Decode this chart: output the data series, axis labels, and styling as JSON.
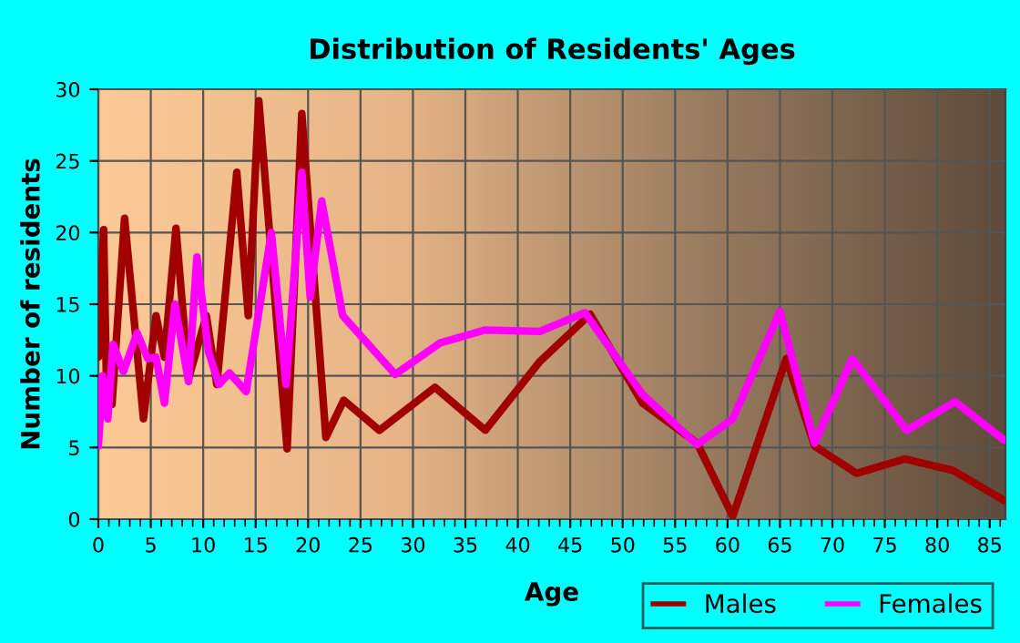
{
  "chart_data": {
    "type": "line",
    "title": "Distribution of Residents' Ages",
    "xlabel": "Age",
    "ylabel": "Number of residents",
    "series": [
      {
        "name": "Males",
        "color": "#a00000",
        "x": [
          0,
          0.5,
          0.8,
          1.3,
          2.5,
          4.3,
          5.5,
          6.3,
          7.4,
          8.6,
          10.3,
          11.3,
          13.2,
          14.3,
          15.3,
          18,
          19.4,
          21.7,
          23.4,
          26.8,
          32.1,
          36.9,
          42.1,
          46.9,
          51.9,
          57.1,
          60.5,
          65.6,
          68.3,
          72.3,
          76.9,
          81.5,
          86.4
        ],
        "values": [
          11.3,
          20.2,
          8.5,
          8,
          21,
          7,
          14.2,
          11.3,
          20.3,
          9.8,
          14.2,
          9.4,
          24.2,
          14.2,
          29.2,
          4.9,
          28.3,
          5.7,
          8.3,
          6.2,
          9.2,
          6.2,
          11,
          14.3,
          8.1,
          5.3,
          0.2,
          11.2,
          5.1,
          3.2,
          4.2,
          3.4,
          1.3
        ]
      },
      {
        "name": "Females",
        "color": "#ff00ff",
        "x": [
          0,
          0.4,
          0.9,
          1.4,
          2.4,
          3.7,
          4.7,
          5.5,
          6.3,
          7.3,
          8.6,
          9.4,
          10.5,
          11.5,
          12.5,
          14.1,
          16.5,
          17.9,
          19.4,
          20.2,
          21.3,
          23.3,
          28.3,
          32.6,
          36.9,
          42.1,
          46.4,
          51.9,
          57.1,
          60.5,
          65,
          68.3,
          71.9,
          77.1,
          81.7,
          86.4
        ],
        "values": [
          5.1,
          10,
          7,
          12.2,
          10.3,
          13,
          11.2,
          11.3,
          8.1,
          15,
          9.6,
          18.3,
          11.7,
          9.4,
          10.2,
          8.9,
          20,
          9.4,
          24.2,
          15.5,
          22.2,
          14.2,
          10.1,
          12.3,
          13.2,
          13.1,
          14.4,
          8.7,
          5.2,
          7,
          14.5,
          5.3,
          11.2,
          6.2,
          8.2,
          5.5
        ]
      }
    ],
    "xlim": [
      0,
      86.5
    ],
    "xticks": [
      0,
      5,
      10,
      15,
      20,
      25,
      30,
      35,
      40,
      45,
      50,
      55,
      60,
      65,
      70,
      75,
      80,
      85
    ],
    "ylim": [
      0,
      30
    ],
    "yticks": [
      0,
      5,
      10,
      15,
      20,
      25,
      30
    ],
    "grid": true,
    "legend": "bottom right",
    "line_style": "solid",
    "marker": "none"
  }
}
